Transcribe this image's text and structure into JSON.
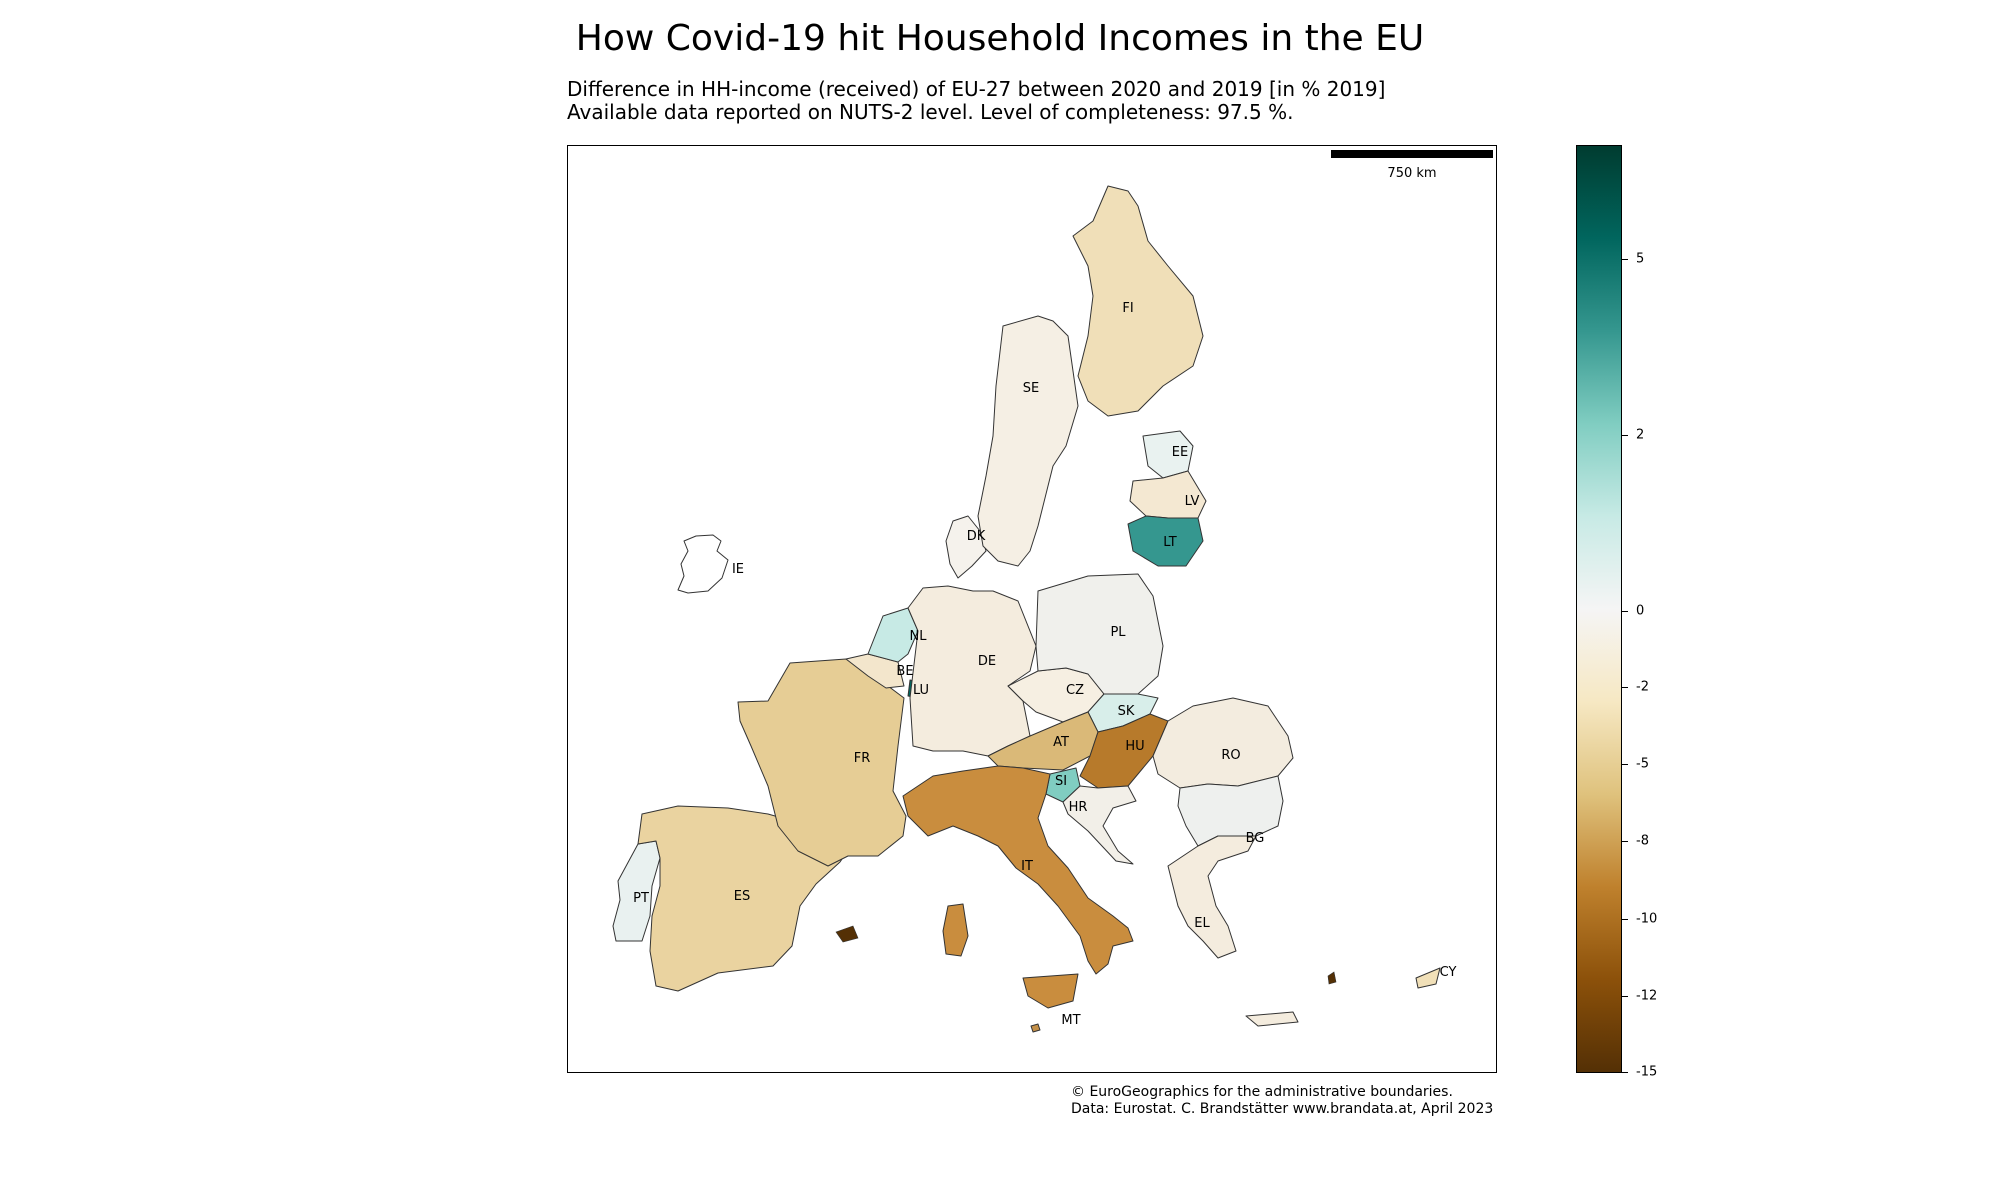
{
  "title": "How Covid-19 hit Household Incomes in the EU",
  "subtitle_lines": [
    "Difference in HH-income (received) of EU-27 between 2020 and 2019 [in % 2019]",
    "Available data reported on NUTS-2 level. Level of completeness: 97.5 %."
  ],
  "scalebar": {
    "label": "750 km"
  },
  "credits": [
    "© EuroGeographics for the administrative boundaries.",
    "Data: Eurostat. C. Brandstätter www.brandata.at, April 2023"
  ],
  "colorbar": {
    "ticks": [
      "5",
      "2",
      "0",
      "-2",
      "-5",
      "-8",
      "-10",
      "-12",
      "-15"
    ],
    "colors": [
      "#543005",
      "#8c510a",
      "#bf812d",
      "#dfc27d",
      "#f6e8c3",
      "#f5f5f5",
      "#c7eae5",
      "#80cdc1",
      "#35978f",
      "#01665e",
      "#003c30"
    ]
  },
  "countries": [
    {
      "code": "FI",
      "color": "#f0dfb8"
    },
    {
      "code": "SE",
      "color": "#f5efe4"
    },
    {
      "code": "EE",
      "color": "#e9f2f0"
    },
    {
      "code": "LV",
      "color": "#f4e8d2"
    },
    {
      "code": "LT",
      "color": "#35978f"
    },
    {
      "code": "DK",
      "color": "#f5f2ec"
    },
    {
      "code": "IE",
      "color": "#ffffff"
    },
    {
      "code": "NL",
      "color": "#c7eae5"
    },
    {
      "code": "BE",
      "color": "#f3e6cc"
    },
    {
      "code": "LU",
      "color": "#01665e"
    },
    {
      "code": "DE",
      "color": "#f4ecde"
    },
    {
      "code": "PL",
      "color": "#f0f0ec"
    },
    {
      "code": "CZ",
      "color": "#f6efe2"
    },
    {
      "code": "SK",
      "color": "#d8eeea"
    },
    {
      "code": "AT",
      "color": "#dab978"
    },
    {
      "code": "HU",
      "color": "#b77a2b"
    },
    {
      "code": "SI",
      "color": "#80cdc1"
    },
    {
      "code": "HR",
      "color": "#f2efe8"
    },
    {
      "code": "RO",
      "color": "#f3ecdf"
    },
    {
      "code": "BG",
      "color": "#eef0ee"
    },
    {
      "code": "FR",
      "color": "#e6cd95"
    },
    {
      "code": "IT",
      "color": "#c98d3e"
    },
    {
      "code": "ES",
      "color": "#ead3a0"
    },
    {
      "code": "PT",
      "color": "#e9f1f0"
    },
    {
      "code": "EL",
      "color": "#f4ecde"
    },
    {
      "code": "MT",
      "color": "#c49048"
    },
    {
      "code": "CY",
      "color": "#f1e0b8"
    }
  ]
}
